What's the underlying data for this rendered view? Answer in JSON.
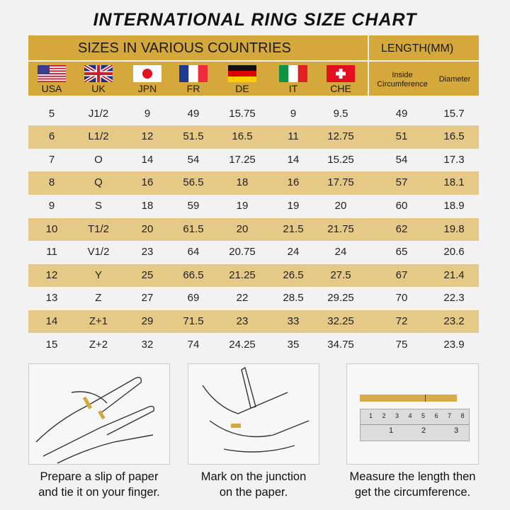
{
  "title": "INTERNATIONAL RING SIZE CHART",
  "header": {
    "sizes_label": "SIZES IN VARIOUS COUNTRIES",
    "length_label": "LENGTH(MM)",
    "inside_label": [
      "Inside",
      "Circumference"
    ],
    "diameter_label": "Diameter"
  },
  "countries": [
    {
      "code": "USA",
      "flag": "us-flag"
    },
    {
      "code": "UK",
      "flag": "uk-flag"
    },
    {
      "code": "JPN",
      "flag": "japan-flag"
    },
    {
      "code": "FR",
      "flag": "france-flag"
    },
    {
      "code": "DE",
      "flag": "germany-flag"
    },
    {
      "code": "IT",
      "flag": "italy-flag"
    },
    {
      "code": "CHE",
      "flag": "switzerland-flag"
    }
  ],
  "colors": {
    "header": "#d4a83a",
    "alt_row": "#e6c987",
    "background": "#f2f2f2"
  },
  "rows": [
    [
      "5",
      "J1/2",
      "9",
      "49",
      "15.75",
      "9",
      "9.5",
      "49",
      "15.7"
    ],
    [
      "6",
      "L1/2",
      "12",
      "51.5",
      "16.5",
      "11",
      "12.75",
      "51",
      "16.5"
    ],
    [
      "7",
      "O",
      "14",
      "54",
      "17.25",
      "14",
      "15.25",
      "54",
      "17.3"
    ],
    [
      "8",
      "Q",
      "16",
      "56.5",
      "18",
      "16",
      "17.75",
      "57",
      "18.1"
    ],
    [
      "9",
      "S",
      "18",
      "59",
      "19",
      "19",
      "20",
      "60",
      "18.9"
    ],
    [
      "10",
      "T1/2",
      "20",
      "61.5",
      "20",
      "21.5",
      "21.75",
      "62",
      "19.8"
    ],
    [
      "11",
      "V1/2",
      "23",
      "64",
      "20.75",
      "24",
      "24",
      "65",
      "20.6"
    ],
    [
      "12",
      "Y",
      "25",
      "66.5",
      "21.25",
      "26.5",
      "27.5",
      "67",
      "21.4"
    ],
    [
      "13",
      "Z",
      "27",
      "69",
      "22",
      "28.5",
      "29.25",
      "70",
      "22.3"
    ],
    [
      "14",
      "Z+1",
      "29",
      "71.5",
      "23",
      "33",
      "32.25",
      "72",
      "23.2"
    ],
    [
      "15",
      "Z+2",
      "32",
      "74",
      "24.25",
      "35",
      "34.75",
      "75",
      "23.9"
    ]
  ],
  "steps": [
    {
      "line1": "Prepare a slip of paper",
      "line2": "and tie it on your finger."
    },
    {
      "line1": "Mark on the junction",
      "line2": "on the paper."
    },
    {
      "line1": "Measure the length then",
      "line2": "get the circumference."
    }
  ],
  "ruler": {
    "mm_marks": [
      "1",
      "2",
      "3",
      "4",
      "5",
      "6",
      "7",
      "8"
    ],
    "inch_marks": [
      "1",
      "2",
      "3"
    ]
  }
}
